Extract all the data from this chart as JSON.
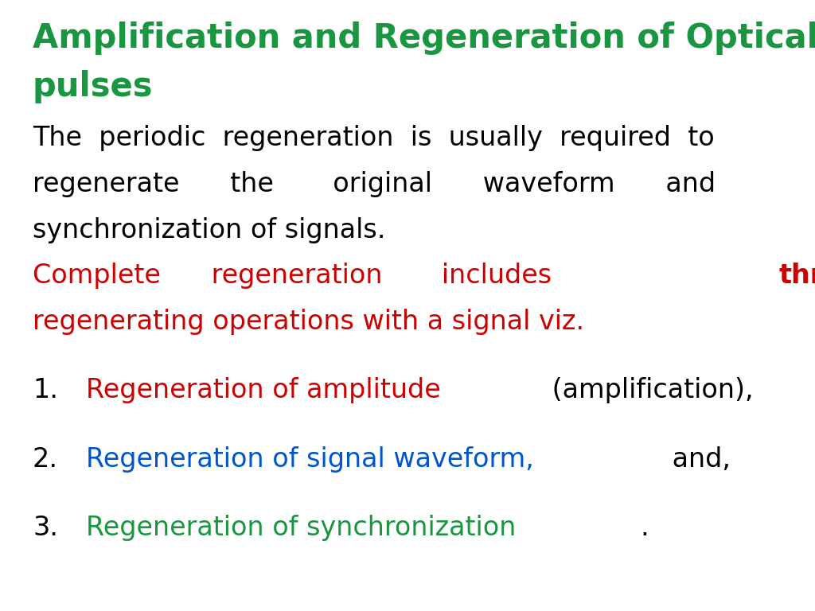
{
  "background_color": "#ffffff",
  "title_line1": "Amplification and Regeneration of Optical",
  "title_line2": "pulses",
  "title_color": "#1a9641",
  "title_fontsize": 30,
  "body_lines": [
    "The  periodic  regeneration  is  usually  required  to",
    "regenerate      the       original      waveform      and",
    "synchronization of signals."
  ],
  "body_color": "#000000",
  "body_fontsize": 24,
  "red_color": "#cc0000",
  "red_fontsize": 24,
  "list_fontsize": 24,
  "list_items": [
    {
      "number": "1.",
      "colored_text": "Regeneration of amplitude",
      "colored_color": "#cc0000",
      "plain_text": " (amplification),",
      "plain_color": "#000000"
    },
    {
      "number": "2.",
      "colored_text": "Regeneration of signal waveform,",
      "colored_color": "#0055cc",
      "plain_text": " and,",
      "plain_color": "#000000"
    },
    {
      "number": "3.",
      "colored_text": "Regeneration of synchronization",
      "colored_color": "#1a9641",
      "plain_text": ".",
      "plain_color": "#000000"
    }
  ]
}
